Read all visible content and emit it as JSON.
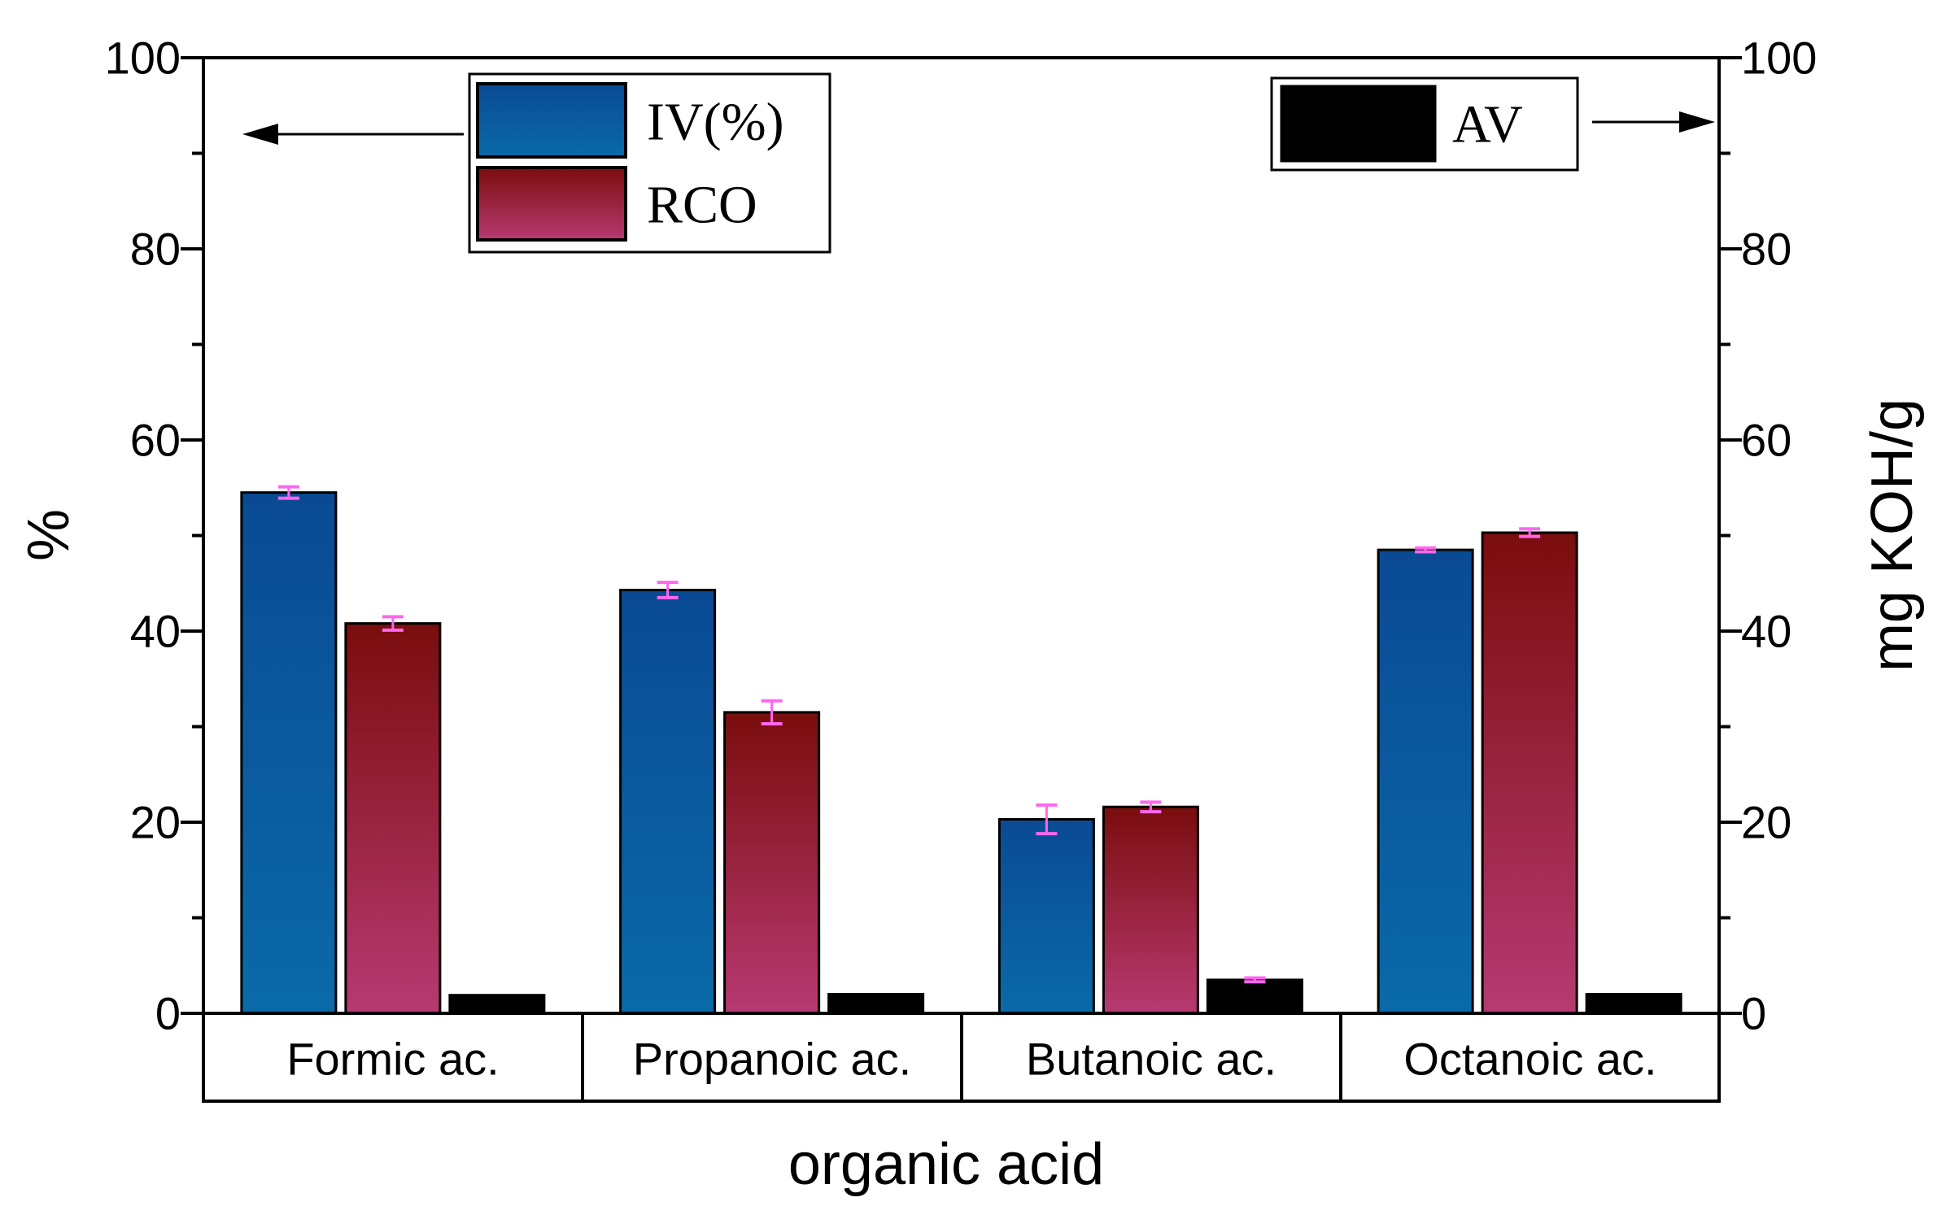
{
  "chart_data": {
    "type": "bar",
    "xlabel": "organic acid",
    "ylabel": "%",
    "ylabel_right": "mg KOH/g",
    "ylim": [
      0,
      100
    ],
    "ylim_right": [
      0,
      100
    ],
    "yticks": [
      "0",
      "20",
      "40",
      "60",
      "80",
      "100"
    ],
    "yticks_right": [
      "0",
      "20",
      "40",
      "60",
      "80",
      "100"
    ],
    "minor_tick_step": 10,
    "categories": [
      "Formic ac.",
      "Propanoic ac.",
      "Butanoic ac.",
      "Octanoic ac."
    ],
    "series": [
      {
        "name": "IV(%)",
        "axis": "left",
        "values": [
          54.5,
          44.3,
          20.3,
          48.5
        ],
        "errors": [
          0.6,
          0.8,
          1.5,
          0.2
        ],
        "color_top": "#0a4a94",
        "color_bottom": "#0a6aa8"
      },
      {
        "name": "RCO",
        "axis": "left",
        "values": [
          40.8,
          31.5,
          21.6,
          50.3
        ],
        "errors": [
          0.7,
          1.2,
          0.5,
          0.4
        ],
        "color_top": "#7a0d0d",
        "color_bottom": "#b73a72"
      },
      {
        "name": "AV",
        "axis": "right",
        "values": [
          1.9,
          2.0,
          3.5,
          2.0
        ],
        "errors": [
          0,
          0,
          0.2,
          0
        ],
        "color_top": "#000000",
        "color_bottom": "#000000"
      }
    ],
    "legend_left": [
      "IV(%)",
      "RCO"
    ],
    "legend_right": [
      "AV"
    ],
    "legend_left_arrow": "points to left axis",
    "legend_right_arrow": "points to right axis",
    "error_bar_color": "#ff66ee",
    "legend_placement": "top-left and top-right"
  }
}
